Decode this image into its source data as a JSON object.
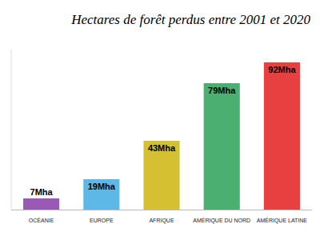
{
  "chart_data": {
    "type": "bar",
    "title": "Hectares de forêt perdus entre 2001 et 2020",
    "categories": [
      "OCÉANIE",
      "EUROPE",
      "AFRIQUE",
      "AMÉRIQUE DU NORD",
      "AMÉRIQUE LATINE"
    ],
    "values": [
      7,
      19,
      43,
      79,
      92
    ],
    "value_labels": [
      "7Mha",
      "19Mha",
      "43Mha",
      "79Mha",
      "92Mha"
    ],
    "data_labels": true,
    "colors": [
      "#9b59b6",
      "#5db8e8",
      "#d4c030",
      "#4caf72",
      "#e84040"
    ],
    "ylim": [
      0,
      100
    ],
    "tick_labels": "x"
  }
}
